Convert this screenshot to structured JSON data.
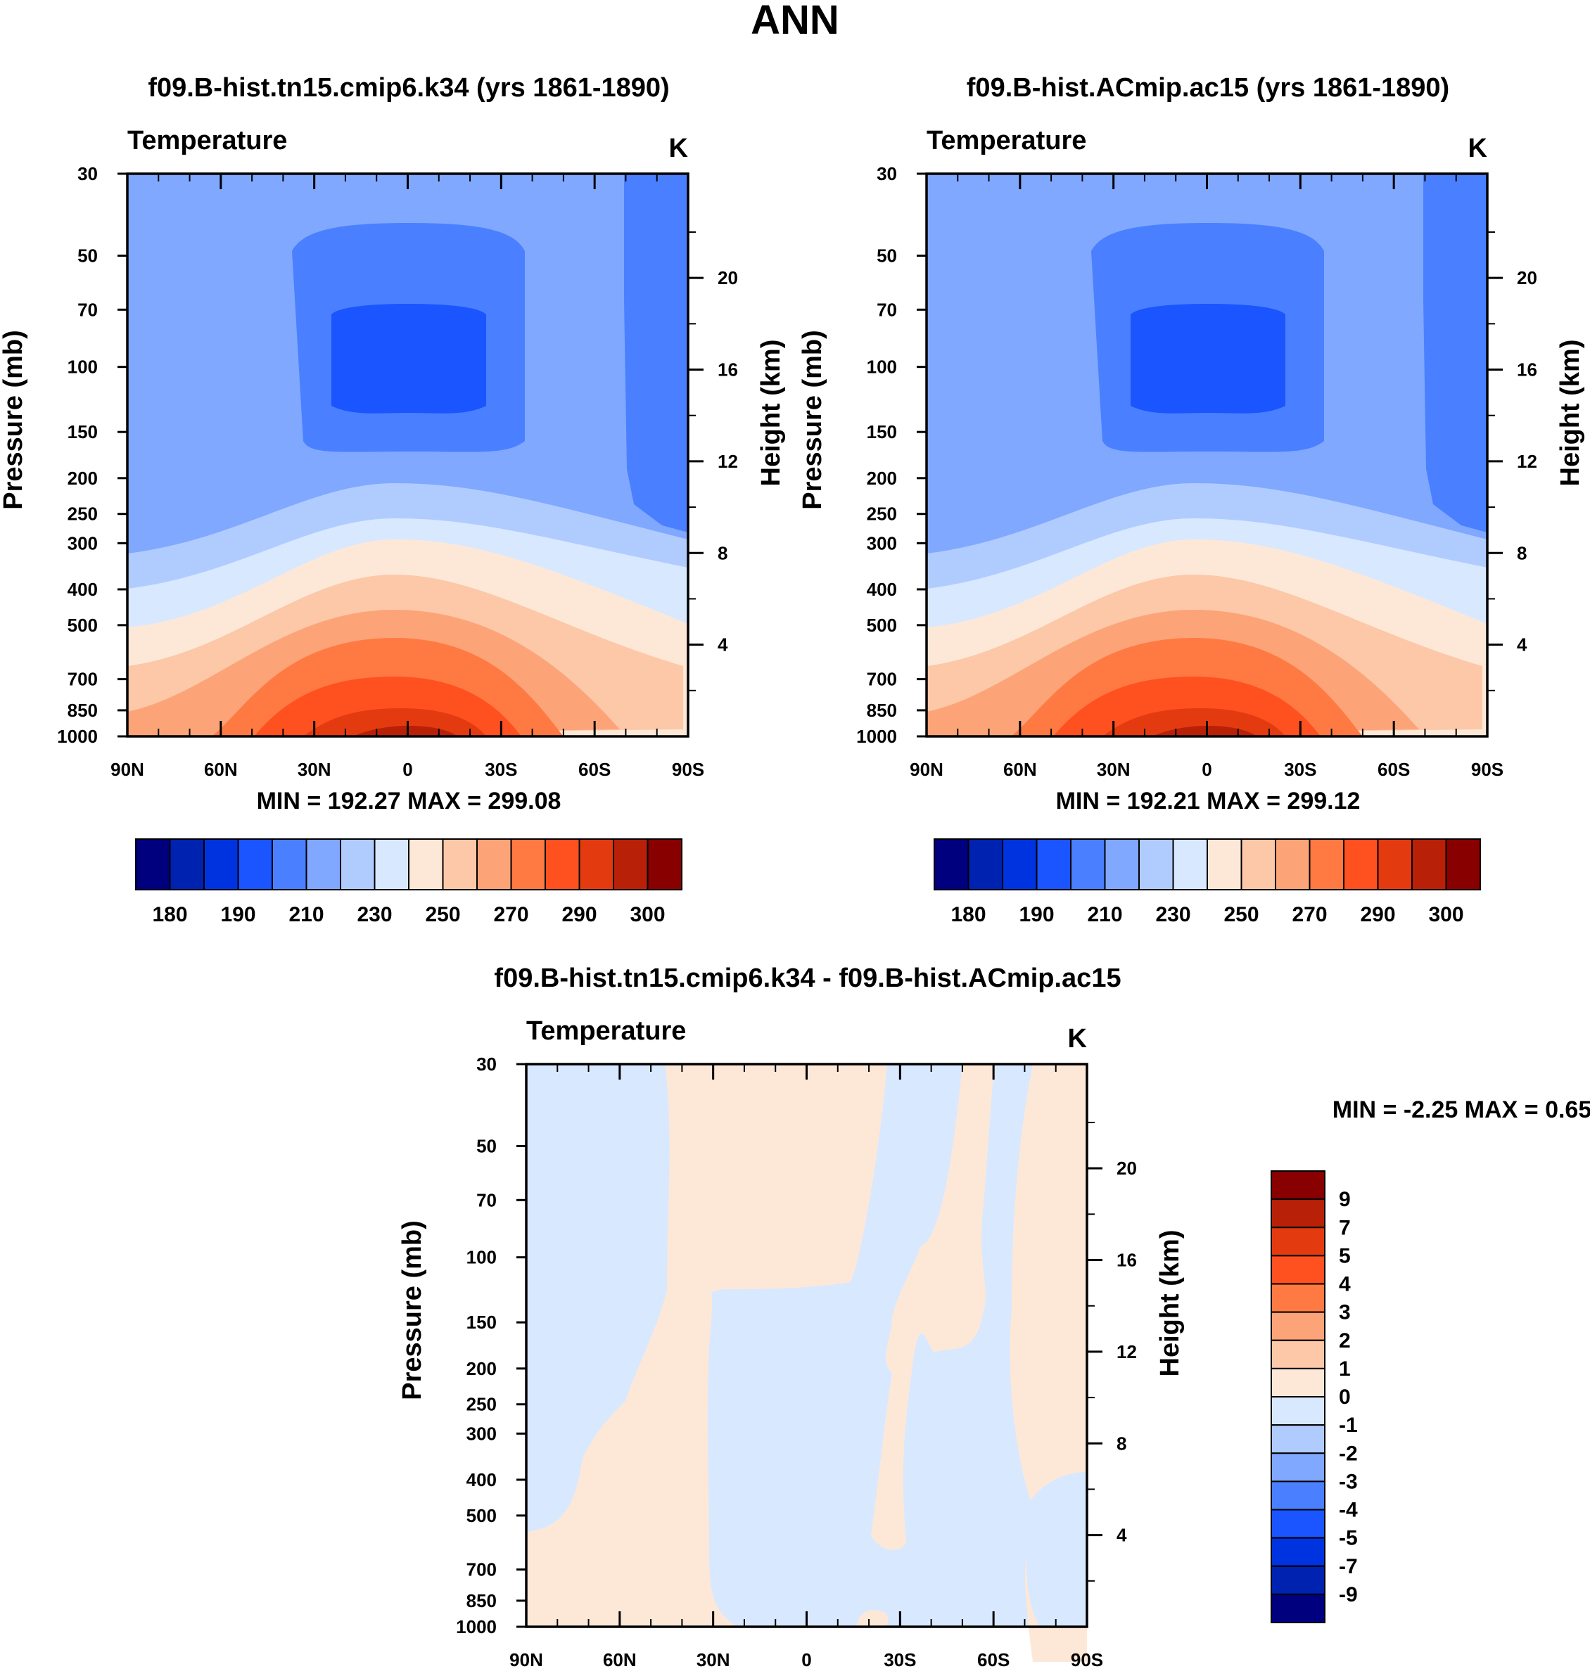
{
  "page_title": "ANN",
  "chart_data": [
    {
      "type": "heatmap",
      "title": "f09.B-hist.tn15.cmip6.k34 (yrs 1861-1890)",
      "left_label": "Temperature",
      "units_label": "K",
      "ylabel": "Pressure (mb)",
      "ylabel_right": "Height (km)",
      "x_ticks": [
        "90N",
        "60N",
        "30N",
        "0",
        "30S",
        "60S",
        "90S"
      ],
      "y_ticks": [
        "30",
        "50",
        "70",
        "100",
        "150",
        "200",
        "250",
        "300",
        "400",
        "500",
        "700",
        "850",
        "1000"
      ],
      "y_ticks_right": [
        "20",
        "16",
        "12",
        "8",
        "4"
      ],
      "stats_text": "MIN = 192.27  MAX = 299.08",
      "min": 192.27,
      "max": 299.08
    },
    {
      "type": "heatmap",
      "title": "f09.B-hist.ACmip.ac15 (yrs 1861-1890)",
      "left_label": "Temperature",
      "units_label": "K",
      "ylabel": "Pressure (mb)",
      "ylabel_right": "Height (km)",
      "x_ticks": [
        "90N",
        "60N",
        "30N",
        "0",
        "30S",
        "60S",
        "90S"
      ],
      "y_ticks": [
        "30",
        "50",
        "70",
        "100",
        "150",
        "200",
        "250",
        "300",
        "400",
        "500",
        "700",
        "850",
        "1000"
      ],
      "y_ticks_right": [
        "20",
        "16",
        "12",
        "8",
        "4"
      ],
      "stats_text": "MIN = 192.21  MAX = 299.12",
      "min": 192.21,
      "max": 299.12
    },
    {
      "type": "heatmap",
      "title": "f09.B-hist.tn15.cmip6.k34 - f09.B-hist.ACmip.ac15",
      "left_label": "Temperature",
      "units_label": "K",
      "ylabel": "Pressure (mb)",
      "ylabel_right": "Height (km)",
      "x_ticks": [
        "90N",
        "60N",
        "30N",
        "0",
        "30S",
        "60S",
        "90S"
      ],
      "y_ticks": [
        "30",
        "50",
        "70",
        "100",
        "150",
        "200",
        "250",
        "300",
        "400",
        "500",
        "700",
        "850",
        "1000"
      ],
      "y_ticks_right": [
        "20",
        "16",
        "12",
        "8",
        "4"
      ],
      "stats_text": "MIN =  -2.25  MAX =   0.65",
      "min": -2.25,
      "max": 0.65
    }
  ],
  "colorbar_main": {
    "colors": [
      "#00007f",
      "#0022b0",
      "#0033e0",
      "#1a55ff",
      "#4a80ff",
      "#80a8ff",
      "#b0ccff",
      "#d8e8ff",
      "#fde8d8",
      "#fcc8a8",
      "#fca478",
      "#ff7a42",
      "#ff5020",
      "#e43a10",
      "#b82008",
      "#880000"
    ],
    "labels": [
      "180",
      "190",
      "210",
      "230",
      "250",
      "270",
      "290",
      "300"
    ]
  },
  "colorbar_diff": {
    "colors": [
      "#880000",
      "#b82008",
      "#e43a10",
      "#ff5020",
      "#ff7a42",
      "#fca478",
      "#fcc8a8",
      "#fde8d8",
      "#d8e8ff",
      "#b0ccff",
      "#80a8ff",
      "#4a80ff",
      "#1a55ff",
      "#0033e0",
      "#0022b0",
      "#00007f"
    ],
    "labels": [
      "9",
      "7",
      "5",
      "4",
      "3",
      "2",
      "1",
      "0",
      "-1",
      "-2",
      "-3",
      "-4",
      "-5",
      "-7",
      "-9"
    ]
  }
}
